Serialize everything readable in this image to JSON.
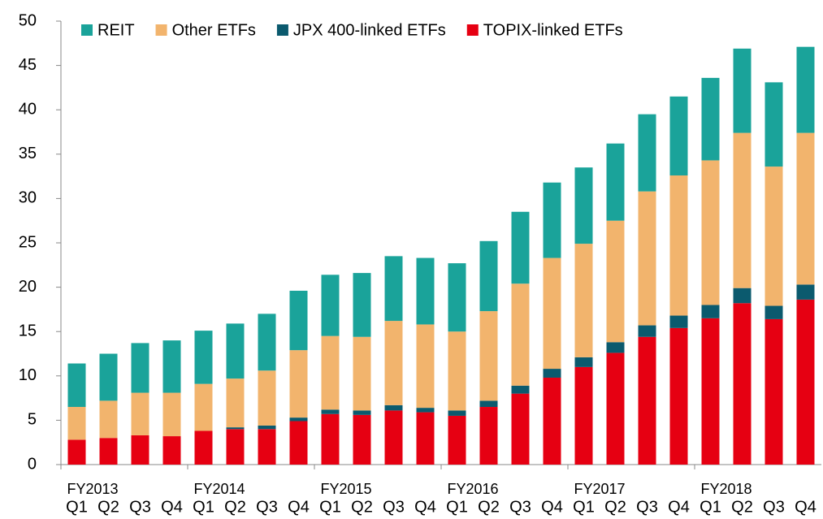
{
  "chart_data": {
    "type": "stacked_bar",
    "categories": [
      "Q1",
      "Q2",
      "Q3",
      "Q4",
      "Q1",
      "Q2",
      "Q3",
      "Q4",
      "Q1",
      "Q2",
      "Q3",
      "Q4",
      "Q1",
      "Q2",
      "Q3",
      "Q4",
      "Q1",
      "Q2",
      "Q3",
      "Q4",
      "Q1",
      "Q2",
      "Q3",
      "Q4"
    ],
    "fiscal_years": [
      "FY2013",
      "FY2014",
      "FY2015",
      "FY2016",
      "FY2017",
      "FY2018"
    ],
    "series": [
      {
        "name": "TOPIX-linked ETFs",
        "color": "#e60012",
        "values": [
          2.8,
          3.0,
          3.3,
          3.2,
          3.8,
          4.0,
          4.0,
          4.9,
          5.7,
          5.6,
          6.1,
          5.9,
          5.5,
          6.5,
          8.0,
          9.8,
          11.0,
          12.6,
          14.4,
          15.4,
          16.5,
          18.2,
          16.4,
          18.6
        ]
      },
      {
        "name": "JPX 400-linked ETFs",
        "color": "#0b5a6e",
        "values": [
          0,
          0,
          0,
          0,
          0,
          0.2,
          0.4,
          0.4,
          0.5,
          0.5,
          0.6,
          0.5,
          0.6,
          0.7,
          0.9,
          1.0,
          1.1,
          1.2,
          1.3,
          1.4,
          1.5,
          1.7,
          1.5,
          1.7
        ]
      },
      {
        "name": "Other ETFs",
        "color": "#f2b46d",
        "values": [
          3.7,
          4.2,
          4.8,
          4.9,
          5.3,
          5.5,
          6.2,
          7.6,
          8.3,
          8.3,
          9.5,
          9.4,
          8.9,
          10.1,
          11.5,
          12.5,
          12.8,
          13.7,
          15.1,
          15.8,
          16.3,
          17.5,
          15.7,
          17.1
        ]
      },
      {
        "name": "REIT",
        "color": "#1aa39a",
        "values": [
          4.9,
          5.3,
          5.6,
          5.9,
          6.0,
          6.2,
          6.4,
          6.7,
          6.9,
          7.2,
          7.3,
          7.5,
          7.7,
          7.9,
          8.1,
          8.5,
          8.6,
          8.7,
          8.7,
          8.9,
          9.3,
          9.5,
          9.5,
          9.7
        ]
      }
    ],
    "ylim": [
      0,
      50
    ],
    "yticks": [
      0,
      5,
      10,
      15,
      20,
      25,
      30,
      35,
      40,
      45,
      50
    ],
    "legend": "top"
  }
}
